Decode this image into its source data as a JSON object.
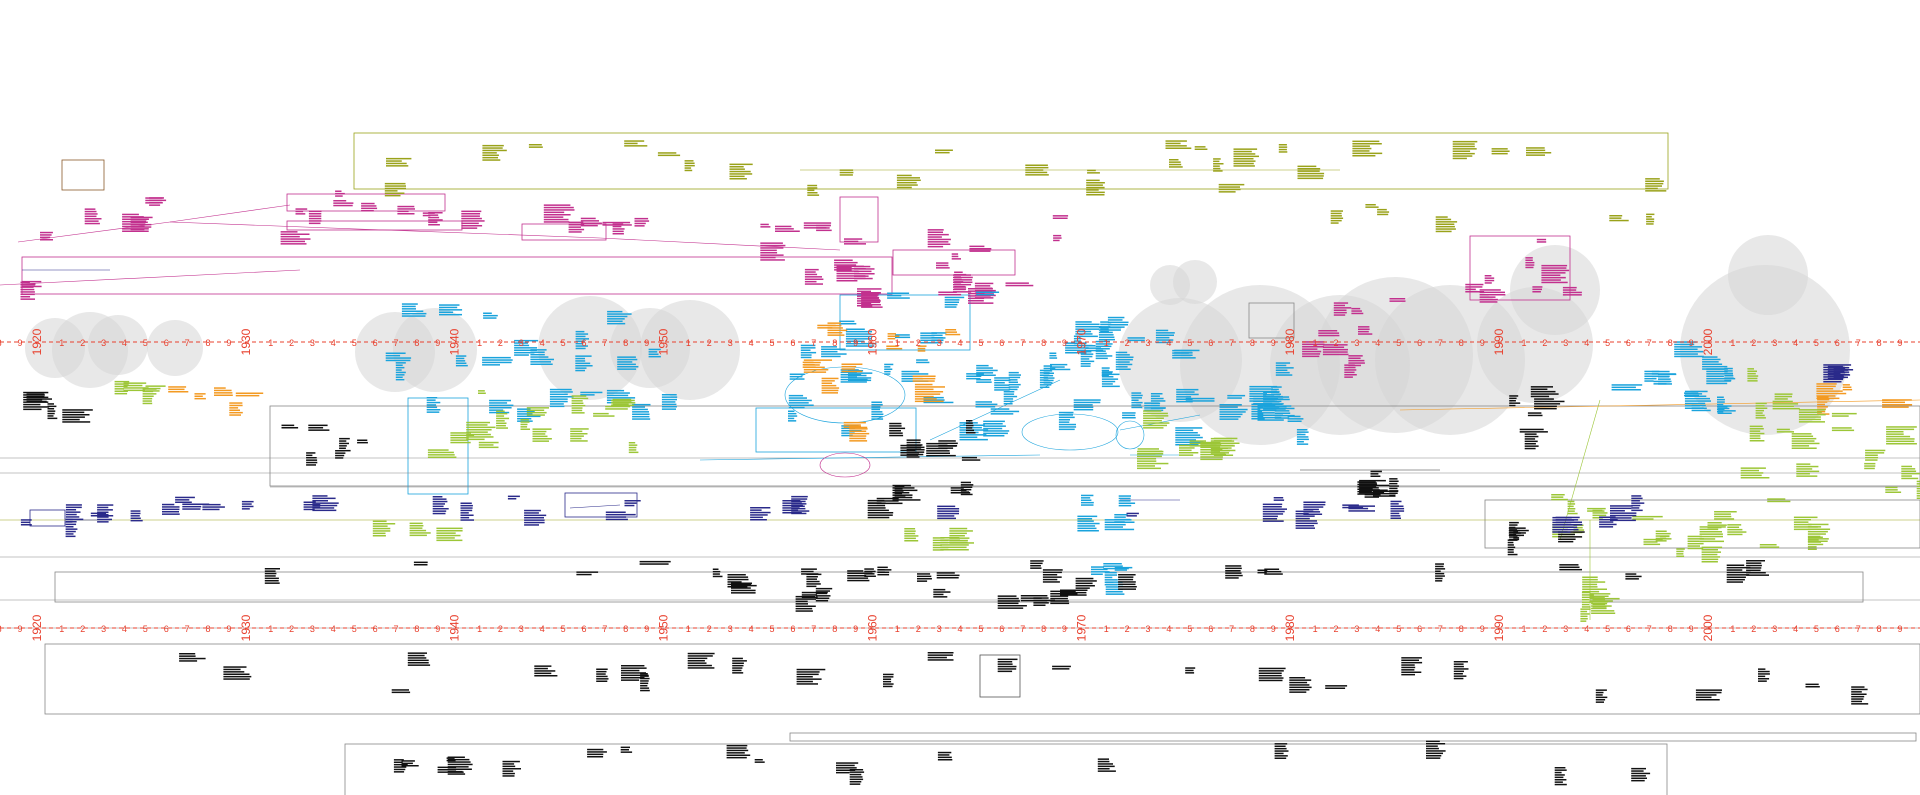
{
  "timeline": {
    "decades": [
      {
        "tick": 4,
        "label": "1920"
      },
      {
        "tick": 4,
        "label": "1930"
      },
      {
        "tick": 4,
        "label": "1940"
      },
      {
        "tick": 4,
        "label": "1950"
      },
      {
        "tick": 4,
        "label": "1960"
      },
      {
        "tick": 4,
        "label": "1970"
      },
      {
        "tick": 4,
        "label": "1980"
      },
      {
        "tick": 4,
        "label": "1990"
      },
      {
        "tick": 4,
        "label": "2000"
      }
    ],
    "top_axis_decades": [
      "1920",
      "1930",
      "1940",
      "1950",
      "1960",
      "1970",
      "1980",
      "1990",
      "2000"
    ],
    "tick_numbers": [
      "1",
      "2",
      "3",
      "4",
      "5",
      "6",
      "7",
      "8",
      "9"
    ]
  },
  "colors": {
    "axis": "#e8402e",
    "magenta": "#c2308e",
    "olive": "#9aa21a",
    "cyan": "#1aa3dc",
    "orange": "#f39a22",
    "lime": "#9cc637",
    "navy": "#2a2a8a",
    "black": "#111111",
    "bubble": "#d6d6d6"
  }
}
